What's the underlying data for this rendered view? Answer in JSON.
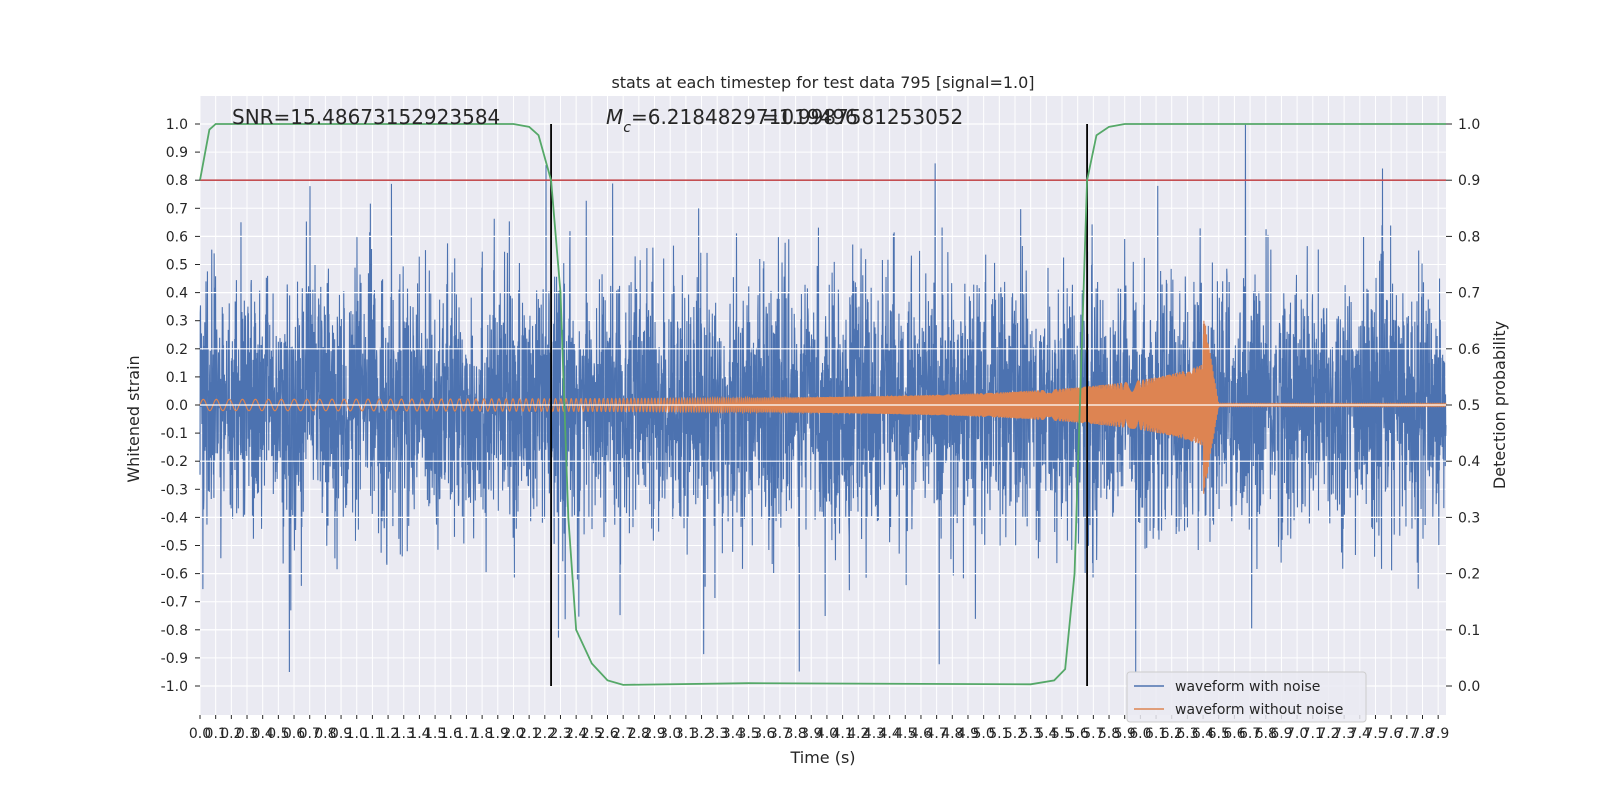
{
  "chart_data": {
    "type": "line",
    "title": "stats at each timestep for test data 795 [signal=1.0]",
    "xlabel": "Time (s)",
    "ylabel": "Whitened strain",
    "y2label": "Detection probability",
    "xlim": [
      0.0,
      7.95
    ],
    "ylim": [
      -1.05,
      1.05
    ],
    "y2lim": [
      -0.05,
      1.05
    ],
    "grid": true,
    "legend_position": "lower-right",
    "annotations": {
      "snr": "SNR=15.48673152923584",
      "mc": "M_c=6.218482971019496",
      "mc_overlap": "=1.9987581253052"
    },
    "threshold_line": {
      "value": 0.9,
      "axis": "y2",
      "color": "#c44e52"
    },
    "vertical_markers": [
      2.24,
      5.66
    ],
    "x_ticks": [
      "0.0",
      "0.1",
      "0.2",
      "0.3",
      "0.4",
      "0.5",
      "0.6",
      "0.7",
      "0.8",
      "0.9",
      "1.0",
      "1.1",
      "1.2",
      "1.3",
      "1.4",
      "1.5",
      "1.6",
      "1.7",
      "1.8",
      "1.9",
      "2.0",
      "2.1",
      "2.2",
      "2.3",
      "2.4",
      "2.5",
      "2.6",
      "2.7",
      "2.8",
      "2.9",
      "3.0",
      "3.1",
      "3.2",
      "3.3",
      "3.4",
      "3.5",
      "3.6",
      "3.7",
      "3.8",
      "3.9",
      "4.0",
      "4.1",
      "4.2",
      "4.3",
      "4.4",
      "4.5",
      "4.6",
      "4.7",
      "4.8",
      "4.9",
      "5.0",
      "5.1",
      "5.2",
      "5.3",
      "5.4",
      "5.5",
      "5.6",
      "5.7",
      "5.8",
      "5.9",
      "6.0",
      "6.1",
      "6.2",
      "6.3",
      "6.4",
      "6.5",
      "6.6",
      "6.7",
      "6.8",
      "6.9",
      "7.0",
      "7.1",
      "7.2",
      "7.3",
      "7.4",
      "7.5",
      "7.6",
      "7.7",
      "7.8",
      "7.9"
    ],
    "y_ticks": [
      "1.0",
      "0.9",
      "0.8",
      "0.7",
      "0.6",
      "0.5",
      "0.4",
      "0.3",
      "0.2",
      "0.1",
      "0.0",
      "-0.1",
      "-0.2",
      "-0.3",
      "-0.4",
      "-0.5",
      "-0.6",
      "-0.7",
      "-0.8",
      "-0.9",
      "-1.0"
    ],
    "y2_ticks": [
      "1.0",
      "0.9",
      "0.8",
      "0.7",
      "0.6",
      "0.5",
      "0.4",
      "0.3",
      "0.2",
      "0.1",
      "0.0"
    ],
    "series": [
      {
        "name": "waveform with noise",
        "color": "#4c72b0",
        "noise_amplitude": 0.85,
        "peak_value": 1.0,
        "peak_time": 6.67
      },
      {
        "name": "waveform without noise",
        "color": "#dd8452",
        "chirp_start_amplitude": 0.02,
        "chirp_peak_amplitude": 0.33,
        "chirp_peak_time": 6.4,
        "merger_end_time": 6.5
      },
      {
        "name": "detection probability",
        "color": "#55a868",
        "axis": "y2",
        "x": [
          0.0,
          0.06,
          0.1,
          0.2,
          2.0,
          2.1,
          2.16,
          2.24,
          2.3,
          2.35,
          2.4,
          2.5,
          2.6,
          2.7,
          3.5,
          5.3,
          5.45,
          5.52,
          5.58,
          5.66,
          5.72,
          5.8,
          5.9,
          6.0,
          7.95
        ],
        "y": [
          0.9,
          0.99,
          1.0,
          1.0,
          1.0,
          0.995,
          0.98,
          0.9,
          0.7,
          0.3,
          0.1,
          0.04,
          0.01,
          0.002,
          0.005,
          0.003,
          0.01,
          0.03,
          0.2,
          0.9,
          0.98,
          0.995,
          1.0,
          1.0,
          1.0
        ]
      }
    ]
  }
}
